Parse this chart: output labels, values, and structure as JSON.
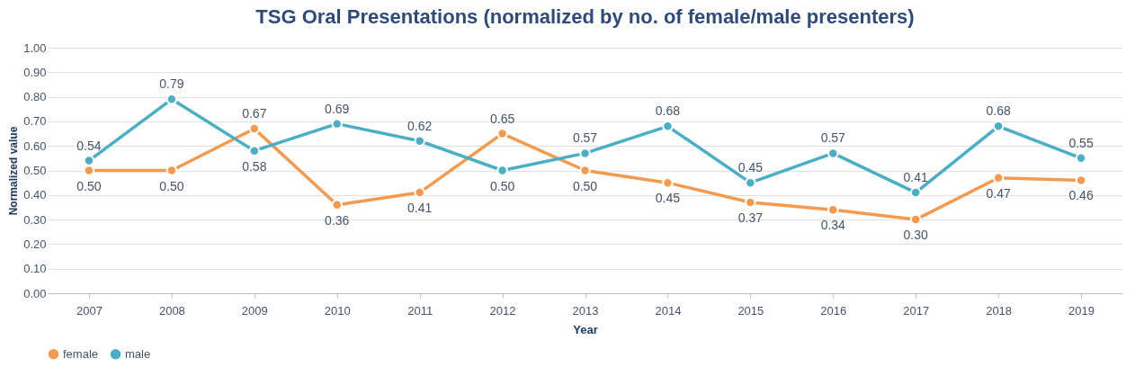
{
  "chart_data": {
    "type": "line",
    "title": "TSG Oral Presentations (normalized by no. of female/male presenters)",
    "xlabel": "Year",
    "ylabel": "Normalized value",
    "categories": [
      "2007",
      "2008",
      "2009",
      "2010",
      "2011",
      "2012",
      "2013",
      "2014",
      "2015",
      "2016",
      "2017",
      "2018",
      "2019"
    ],
    "series": [
      {
        "name": "female",
        "color": "#f39a4e",
        "values": [
          0.5,
          0.5,
          0.67,
          0.36,
          0.41,
          0.65,
          0.5,
          0.45,
          0.37,
          0.34,
          0.3,
          0.47,
          0.46
        ],
        "value_labels": [
          "0.50",
          "0.50",
          "0.67",
          "0.36",
          "0.41",
          "0.65",
          "0.50",
          "0.45",
          "0.37",
          "0.34",
          "0.30",
          "0.47",
          "0.46"
        ]
      },
      {
        "name": "male",
        "color": "#4aaec4",
        "values": [
          0.54,
          0.79,
          0.58,
          0.69,
          0.62,
          0.5,
          0.57,
          0.68,
          0.45,
          0.57,
          0.41,
          0.68,
          0.55
        ],
        "value_labels": [
          "0.54",
          "0.79",
          "0.58",
          "0.69",
          "0.62",
          "0.50",
          "0.57",
          "0.68",
          "0.45",
          "0.57",
          "0.41",
          "0.68",
          "0.55"
        ]
      }
    ],
    "ylim": [
      0,
      1
    ],
    "yticks": [
      {
        "value": 0,
        "label": "0.00"
      },
      {
        "value": 0.1,
        "label": "0.10"
      },
      {
        "value": 0.2,
        "label": "0.20"
      },
      {
        "value": 0.3,
        "label": "0.30"
      },
      {
        "value": 0.4,
        "label": "0.40"
      },
      {
        "value": 0.5,
        "label": "0.50"
      },
      {
        "value": 0.6,
        "label": "0.60"
      },
      {
        "value": 0.7,
        "label": "0.70"
      },
      {
        "value": 0.8,
        "label": "0.80"
      },
      {
        "value": 0.9,
        "label": "0.90"
      },
      {
        "value": 1,
        "label": "1.00"
      }
    ],
    "grid": "y",
    "legend": "bottom",
    "marker": "circle",
    "line_style": "solid"
  }
}
